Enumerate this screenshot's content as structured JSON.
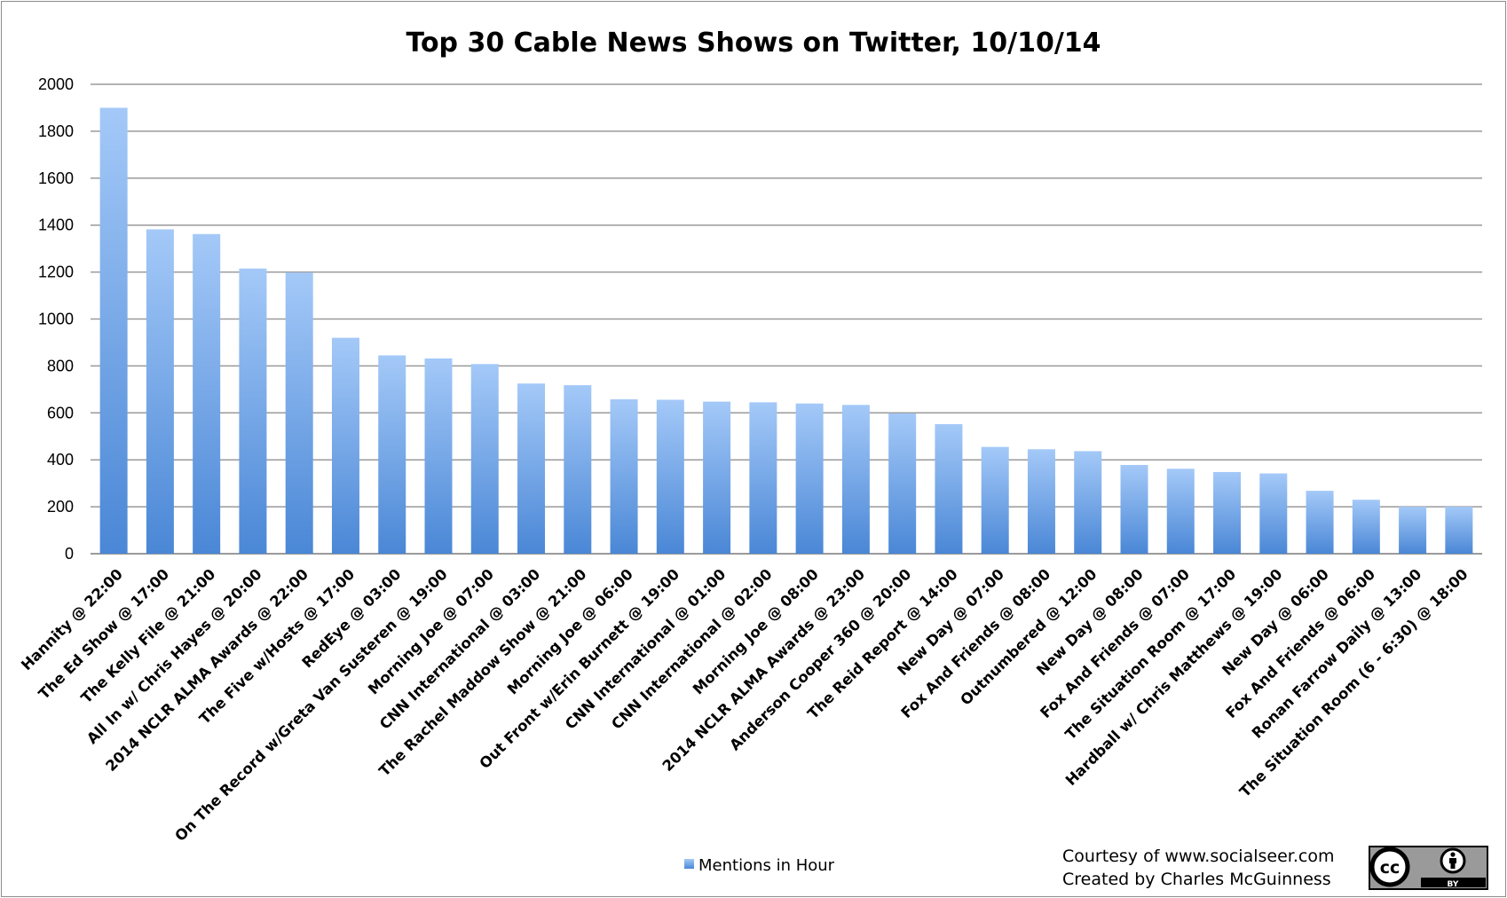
{
  "chart_data": {
    "type": "bar",
    "title": "Top 30 Cable News Shows on Twitter,  10/10/14",
    "xlabel": "",
    "ylabel": "",
    "ylim": [
      0,
      2000
    ],
    "yticks": [
      "0",
      "200",
      "400",
      "600",
      "800",
      "1000",
      "1200",
      "1400",
      "1600",
      "1800",
      "2000"
    ],
    "grid": true,
    "legend_position": "bottom",
    "bar_color": "#5b9bd5",
    "categories": [
      "Hannity @ 22:00",
      "The Ed Show @ 17:00",
      "The Kelly File @ 21:00",
      "All In w/ Chris Hayes @ 20:00",
      "2014 NCLR ALMA Awards @ 22:00",
      "The Five w/Hosts @ 17:00",
      "RedEye @ 03:00",
      "On The Record w/Greta Van Susteren @ 19:00",
      "Morning Joe @ 07:00",
      "CNN International @ 03:00",
      "The Rachel Maddow Show @ 21:00",
      "Morning Joe @ 06:00",
      "Out Front w/Erin Burnett @ 19:00",
      "CNN International @ 01:00",
      "CNN International @ 02:00",
      "Morning Joe @ 08:00",
      "2014 NCLR ALMA Awards @ 23:00",
      "Anderson Cooper 360 @ 20:00",
      "The Reid Report @ 14:00",
      "New Day @ 07:00",
      "Fox And Friends @ 08:00",
      "Outnumbered @ 12:00",
      "New Day @ 08:00",
      "Fox And Friends @ 07:00",
      "The Situation Room @ 17:00",
      "Hardball w/ Chris Matthews @ 19:00",
      "New Day @ 06:00",
      "Fox And Friends @ 06:00",
      "Ronan Farrow Daily @ 13:00",
      "The Situation Room (6 - 6:30) @ 18:00"
    ],
    "series": [
      {
        "name": "Mentions in Hour",
        "values": [
          1900,
          1382,
          1362,
          1215,
          1198,
          920,
          845,
          832,
          808,
          725,
          718,
          658,
          656,
          648,
          645,
          640,
          634,
          598,
          552,
          455,
          445,
          437,
          378,
          362,
          348,
          342,
          268,
          230,
          200,
          200
        ]
      }
    ]
  },
  "credits": {
    "line1": "Courtesy of www.socialseer.com",
    "line2": "Created by Charles McGuinness"
  },
  "license_badge": {
    "icon": "cc-by-icon",
    "cc_text": "cc",
    "by_text": "BY"
  }
}
